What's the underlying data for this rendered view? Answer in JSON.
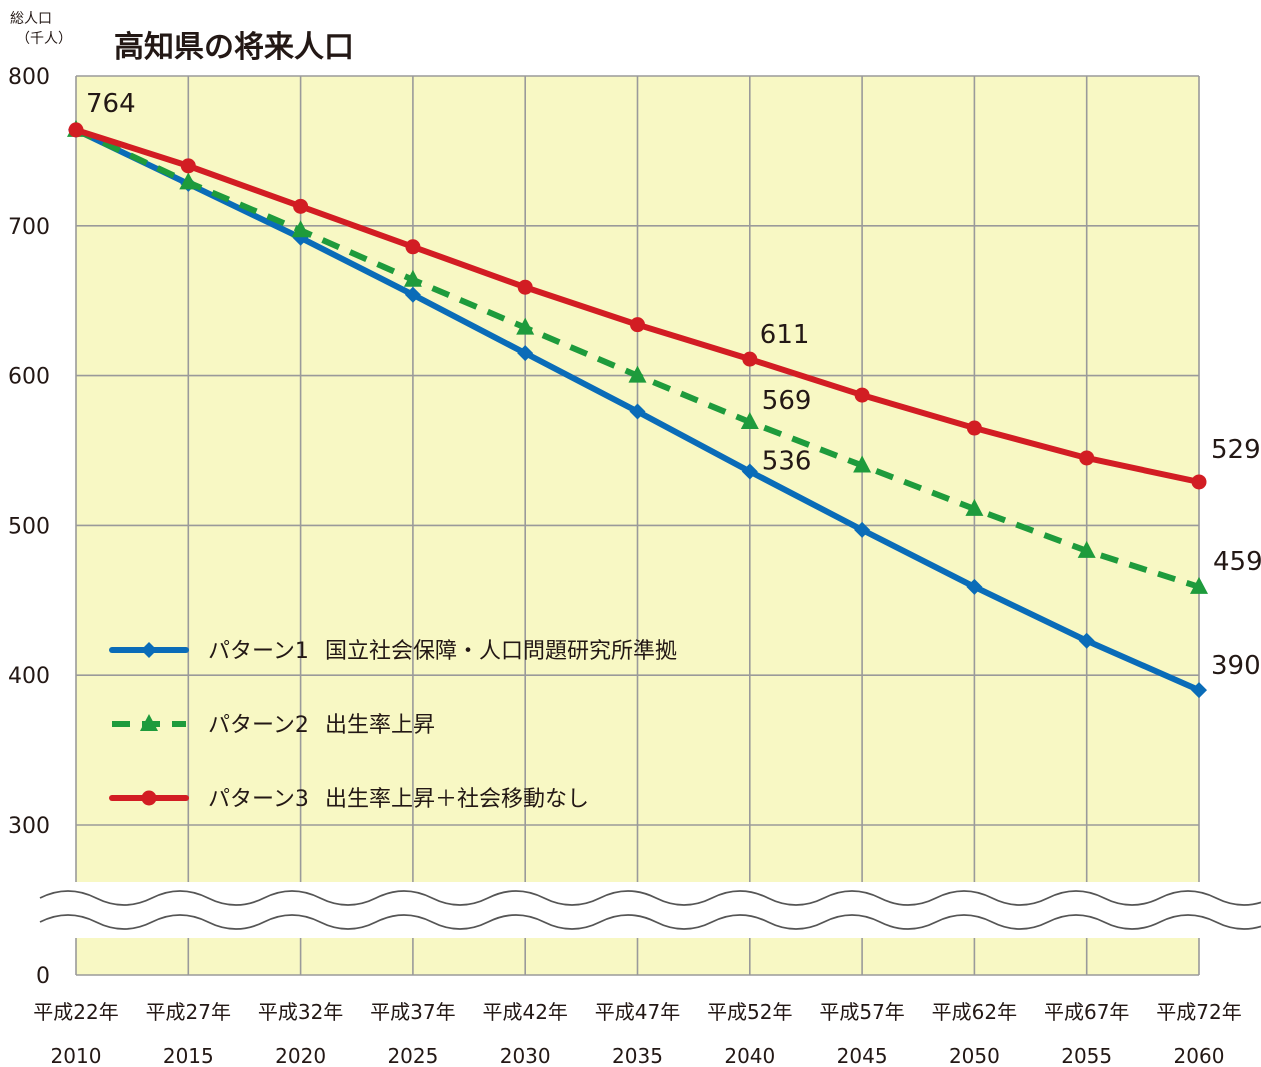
{
  "header": {
    "unit_line1": "総人口",
    "unit_line2": "（千人）"
  },
  "chart_data": {
    "type": "line",
    "title": "高知県の将来人口",
    "ylabel": "総人口（千人）",
    "xlabel": "",
    "x": [
      2010,
      2015,
      2020,
      2025,
      2030,
      2035,
      2040,
      2045,
      2050,
      2055,
      2060
    ],
    "era_labels": [
      "平成22年",
      "平成27年",
      "平成32年",
      "平成37年",
      "平成42年",
      "平成47年",
      "平成52年",
      "平成57年",
      "平成62年",
      "平成67年",
      "平成72年"
    ],
    "year_labels": [
      "2010",
      "2015",
      "2020",
      "2025",
      "2030",
      "2035",
      "2040",
      "2045",
      "2050",
      "2055",
      "2060"
    ],
    "y_ticks": [
      0,
      300,
      400,
      500,
      600,
      700,
      800
    ],
    "y_tick_labels": [
      "0",
      "300",
      "400",
      "500",
      "600",
      "700",
      "800"
    ],
    "ylim": [
      300,
      800
    ],
    "axis_break": "between 0 and 300",
    "grid": true,
    "background": "#f8f8c4",
    "legend_position": "lower-left inside plot",
    "series": [
      {
        "name": "パターン1",
        "description": "国立社会保障・人口問題研究所準拠",
        "color": "#0a6cb8",
        "line_style": "solid",
        "marker": "diamond",
        "values": [
          764,
          728,
          692,
          654,
          615,
          576,
          536,
          497,
          459,
          423,
          390
        ]
      },
      {
        "name": "パターン2",
        "description": "出生率上昇",
        "color": "#1e9b3c",
        "line_style": "dashed",
        "marker": "triangle",
        "values": [
          764,
          729,
          697,
          664,
          632,
          600,
          569,
          540,
          511,
          483,
          459
        ]
      },
      {
        "name": "パターン3",
        "description": "出生率上昇＋社会移動なし",
        "color": "#d21d23",
        "line_style": "solid",
        "marker": "circle",
        "values": [
          764,
          740,
          713,
          686,
          659,
          634,
          611,
          587,
          565,
          545,
          529
        ]
      }
    ],
    "data_labels": [
      {
        "x": 2010,
        "value": "764"
      },
      {
        "x": 2040,
        "value": "611"
      },
      {
        "x": 2040,
        "value": "569"
      },
      {
        "x": 2040,
        "value": "536"
      },
      {
        "x": 2060,
        "value": "529"
      },
      {
        "x": 2060,
        "value": "459"
      },
      {
        "x": 2060,
        "value": "390"
      }
    ]
  }
}
